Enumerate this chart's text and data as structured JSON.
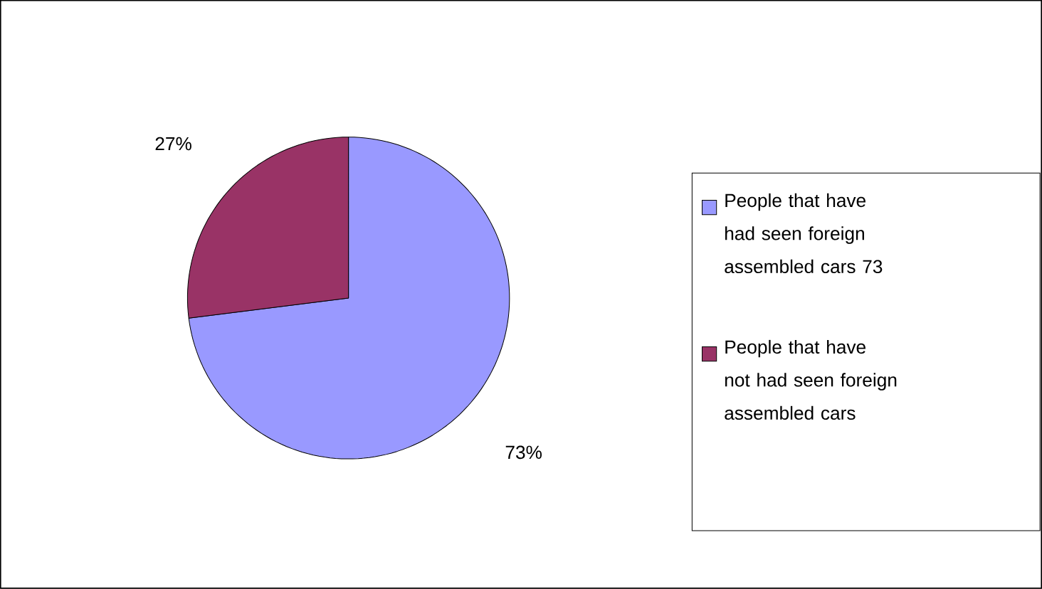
{
  "chart_data": {
    "type": "pie",
    "categories": [
      "People that have had seen foreign assembled cars 73",
      "People that have not had seen foreign assembled cars"
    ],
    "values": [
      73,
      27
    ],
    "colors": [
      "#9999ff",
      "#993366"
    ],
    "value_labels": [
      "73%",
      "27%"
    ],
    "legend": "right"
  }
}
